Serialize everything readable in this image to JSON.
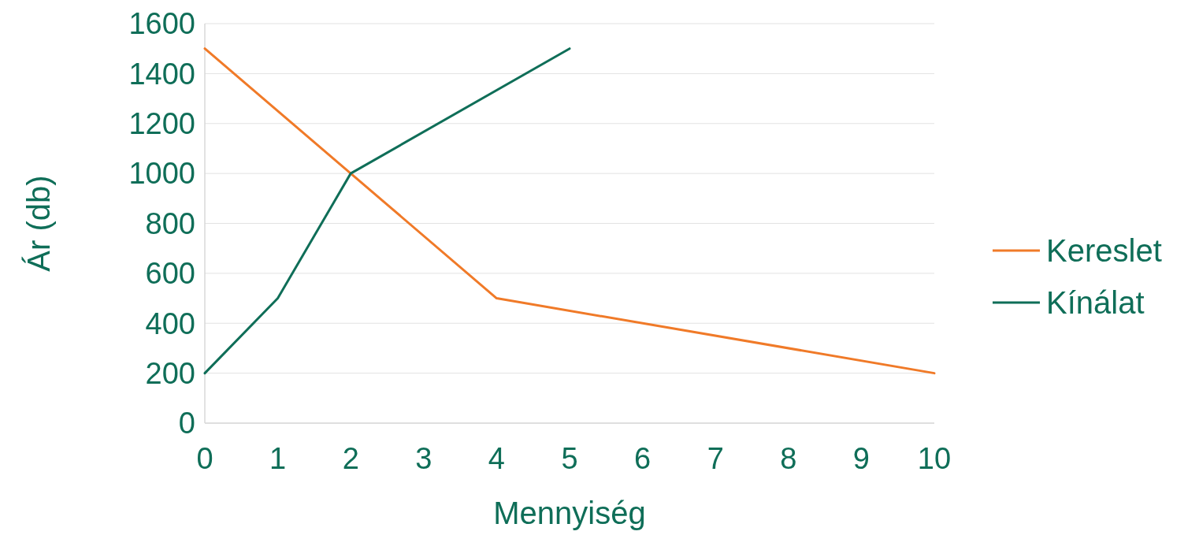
{
  "chart_data": {
    "type": "line",
    "xlabel": "Mennyiség",
    "ylabel": "Ár (db)",
    "series": [
      {
        "name": "Kereslet",
        "color": "#f07a28",
        "x": [
          0,
          2,
          4,
          10
        ],
        "values": [
          1500,
          1000,
          500,
          200
        ]
      },
      {
        "name": "Kínálat",
        "color": "#0f6e58",
        "x": [
          0,
          1,
          2,
          5
        ],
        "values": [
          200,
          500,
          1000,
          1500
        ]
      }
    ],
    "xlim": [
      0,
      10
    ],
    "xticks": [
      0,
      1,
      2,
      3,
      4,
      5,
      6,
      7,
      8,
      9,
      10
    ],
    "ylim": [
      0,
      1600
    ],
    "yticks": [
      0,
      200,
      400,
      600,
      800,
      1000,
      1200,
      1400,
      1600
    ],
    "grid": "y",
    "legend": "right",
    "marker": "none",
    "line_style": "solid"
  }
}
